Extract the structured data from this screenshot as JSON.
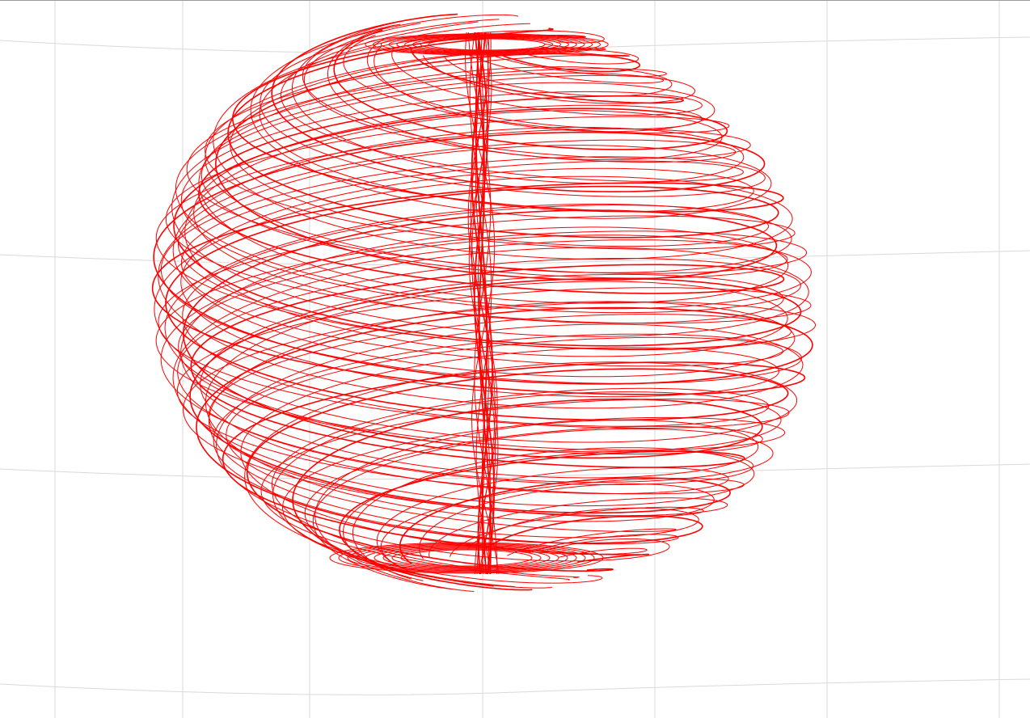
{
  "scene": {
    "background_color": "#ffffff",
    "grid_color": "#d9d9d9",
    "frame_color": "#9a9a9a",
    "curve_color": "#ff0000",
    "curve_name": "spiral-attractor-trajectory"
  }
}
